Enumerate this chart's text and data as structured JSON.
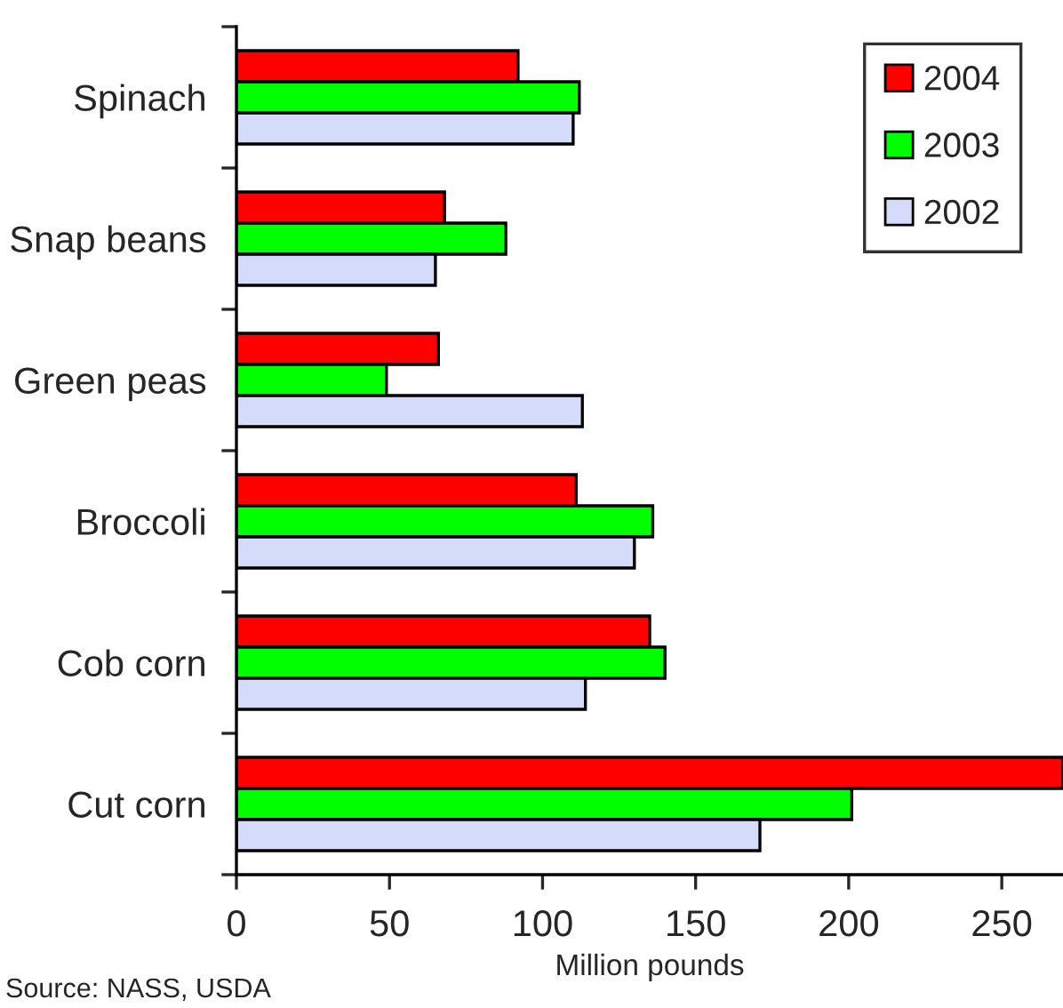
{
  "chart_data": {
    "type": "bar",
    "orientation": "horizontal",
    "xlabel": "Million pounds",
    "categories": [
      "Spinach",
      "Snap beans",
      "Green peas",
      "Broccoli",
      "Cob corn",
      "Cut corn"
    ],
    "series": [
      {
        "name": "2004",
        "color": "#ff0000",
        "values": [
          92,
          68,
          66,
          111,
          135,
          270
        ]
      },
      {
        "name": "2003",
        "color": "#00ff00",
        "values": [
          112,
          88,
          49,
          136,
          140,
          201
        ]
      },
      {
        "name": "2002",
        "color": "#d4dcfa",
        "values": [
          110,
          65,
          113,
          130,
          114,
          171
        ]
      }
    ],
    "xlim": [
      0,
      270
    ],
    "xticks": [
      0,
      50,
      100,
      150,
      200,
      250
    ],
    "grid": false,
    "legend": "top right",
    "annotations": [
      "Source: NASS, USDA"
    ]
  }
}
